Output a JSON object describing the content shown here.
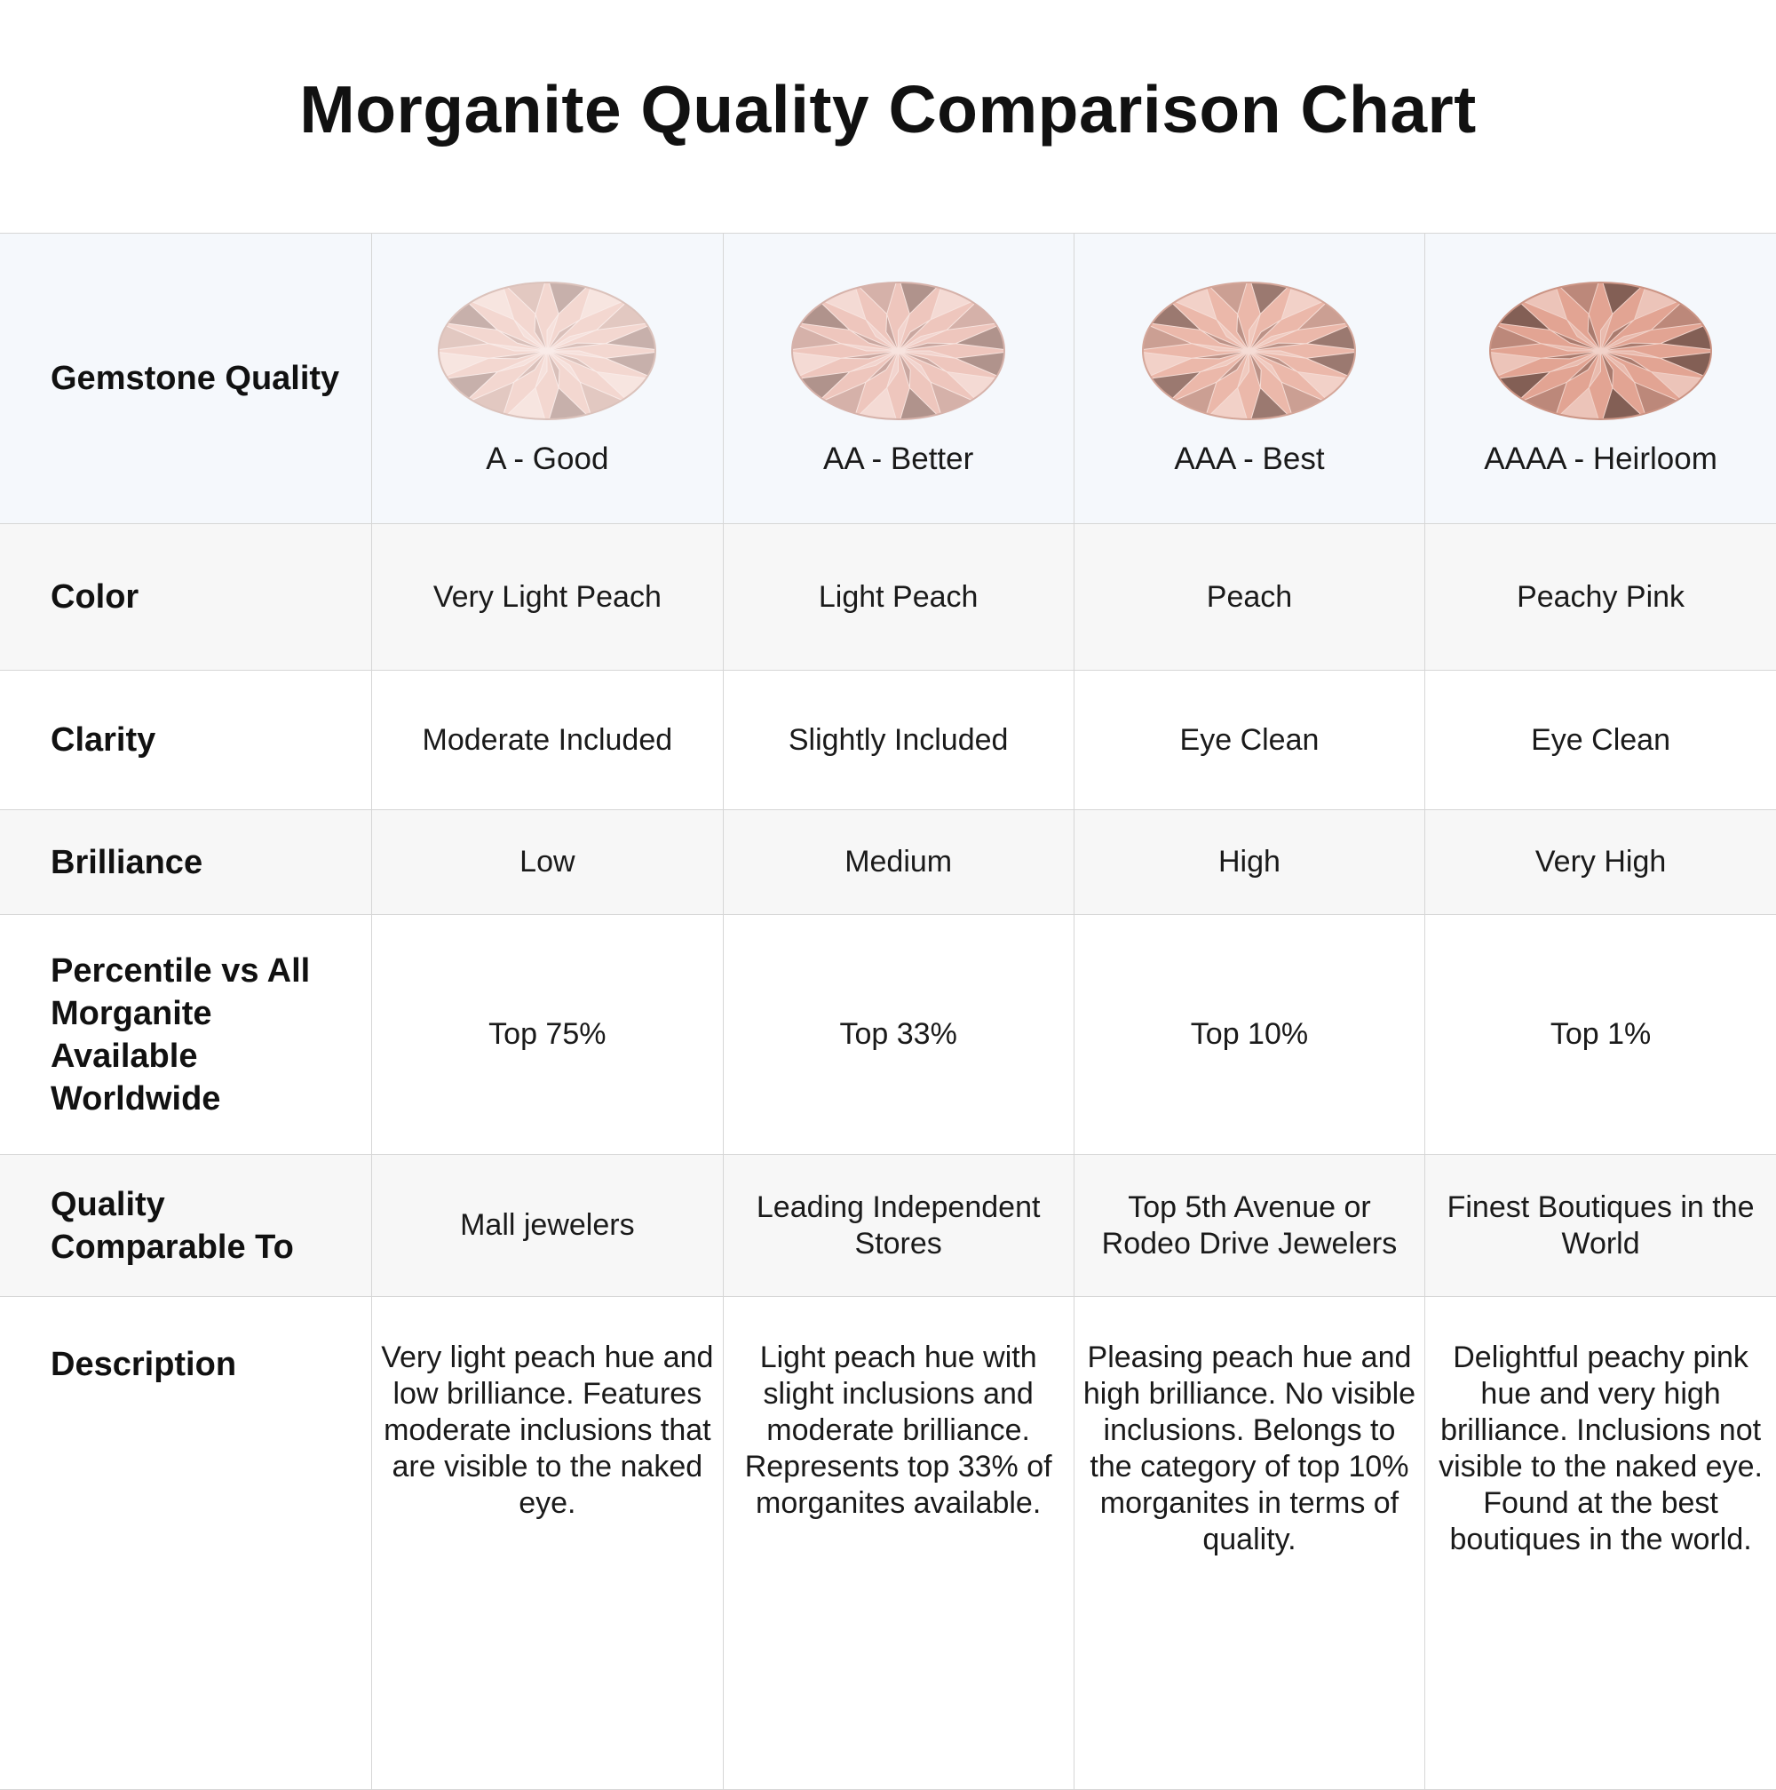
{
  "title": "Morganite Quality Comparison Chart",
  "row_labels": {
    "quality": "Gemstone Quality",
    "color": "Color",
    "clarity": "Clarity",
    "brilliance": "Brilliance",
    "percentile": "Percentile vs All Morganite Available Worldwide",
    "comparable": "Quality Comparable To",
    "description": "Description"
  },
  "grades": [
    {
      "label": "A - Good",
      "gem_icon": "oval-morganite-gem-icon",
      "gem_color": "#f3d7d0",
      "color": "Very Light Peach",
      "clarity": "Moderate Included",
      "brilliance": "Low",
      "percentile": "Top 75%",
      "comparable": "Mall jewelers",
      "description": "Very light peach hue and low brilliance. Features moderate inclusions that are visible to the naked eye."
    },
    {
      "label": "AA - Better",
      "gem_icon": "oval-morganite-gem-icon",
      "gem_color": "#eec6bd",
      "color": "Light Peach",
      "clarity": "Slightly Included",
      "brilliance": "Medium",
      "percentile": "Top 33%",
      "comparable": "Leading Independent Stores",
      "description": "Light peach hue with slight inclusions and moderate brilliance. Represents top 33% of morganites available."
    },
    {
      "label": "AAA - Best",
      "gem_icon": "oval-morganite-gem-icon",
      "gem_color": "#ebb8aa",
      "color": "Peach",
      "clarity": "Eye Clean",
      "brilliance": "High",
      "percentile": "Top 10%",
      "comparable": "Top 5th Avenue or Rodeo Drive Jewelers",
      "description": "Pleasing peach hue and high brilliance. No visible inclusions. Belongs to the category of top 10% morganites in terms of quality."
    },
    {
      "label": "AAAA - Heirloom",
      "gem_icon": "oval-morganite-gem-icon",
      "gem_color": "#e2a493",
      "color": "Peachy Pink",
      "clarity": "Eye Clean",
      "brilliance": "Very High",
      "percentile": "Top 1%",
      "comparable": "Finest Boutiques in the World",
      "description": "Delightful peachy pink hue and very high brilliance. Inclusions not visible to the naked eye. Found at the best boutiques in the world."
    }
  ]
}
